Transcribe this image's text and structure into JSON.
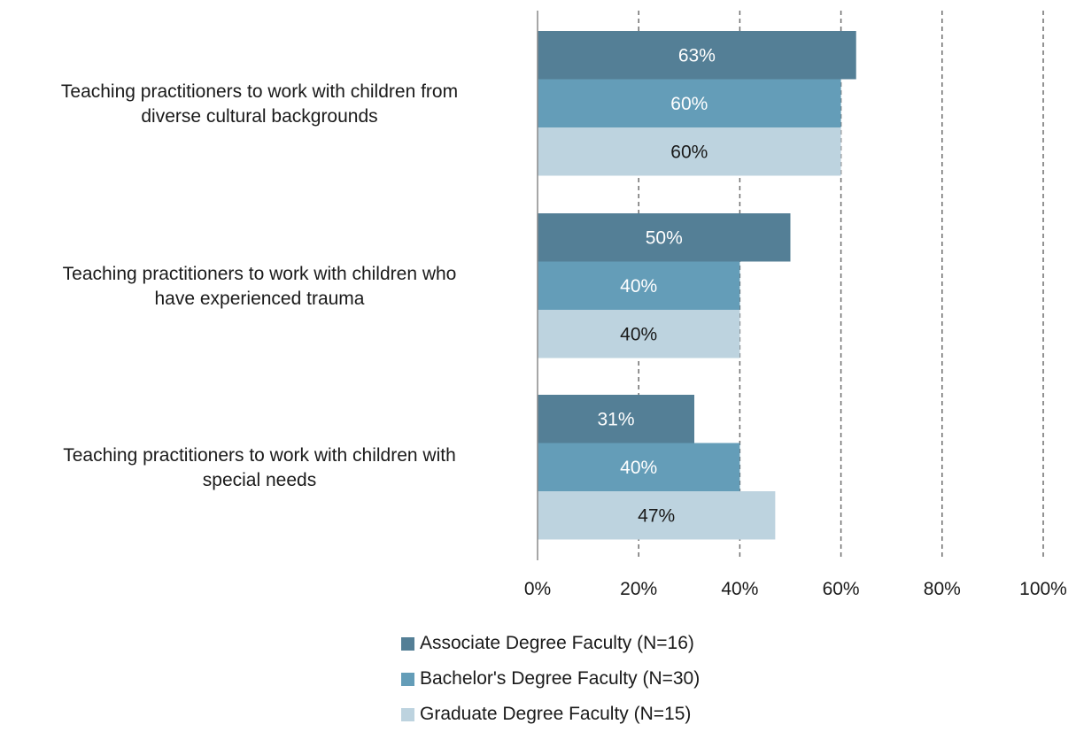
{
  "chart_data": {
    "type": "bar",
    "orientation": "horizontal",
    "categories": [
      "Teaching practitioners to work with children from diverse cultural backgrounds",
      "Teaching practitioners to work with children who have experienced trauma",
      "Teaching practitioners to work with children with special needs"
    ],
    "category_lines": [
      [
        "Teaching practitioners to work with children from",
        "diverse cultural backgrounds"
      ],
      [
        "Teaching practitioners to work with children who",
        "have experienced trauma"
      ],
      [
        "Teaching practitioners to work with children with",
        "special needs"
      ]
    ],
    "series": [
      {
        "name": "Associate Degree Faculty (N=16)",
        "values": [
          63,
          50,
          31
        ],
        "labels": [
          "63%",
          "50%",
          "31%"
        ],
        "color": "#547f96",
        "label_color": "#ffffff"
      },
      {
        "name": "Bachelor's Degree Faculty (N=30)",
        "values": [
          60,
          40,
          40
        ],
        "labels": [
          "60%",
          "40%",
          "40%"
        ],
        "color": "#649db8",
        "label_color": "#ffffff"
      },
      {
        "name": "Graduate Degree Faculty (N=15)",
        "values": [
          60,
          40,
          47
        ],
        "labels": [
          "60%",
          "40%",
          "47%"
        ],
        "color": "#bdd3df",
        "label_color": "#1a1a1a"
      }
    ],
    "xlim": [
      0,
      100
    ],
    "x_ticks": [
      0,
      20,
      40,
      60,
      80,
      100
    ],
    "x_tick_labels": [
      "0%",
      "20%",
      "40%",
      "60%",
      "80%",
      "100%"
    ],
    "grid": "vertical dashed",
    "legend_position": "bottom"
  }
}
